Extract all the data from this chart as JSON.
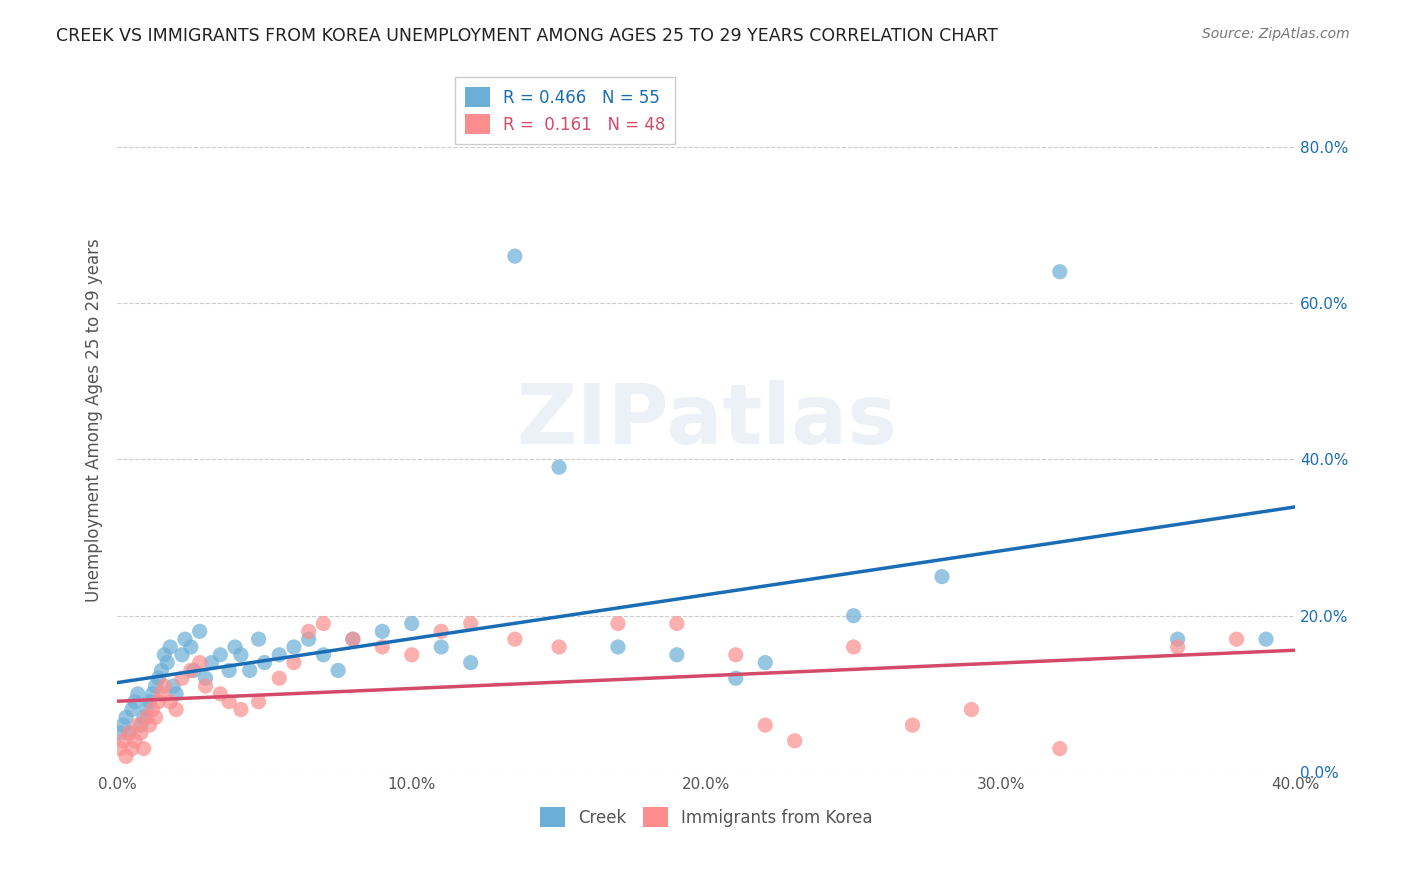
{
  "title": "CREEK VS IMMIGRANTS FROM KOREA UNEMPLOYMENT AMONG AGES 25 TO 29 YEARS CORRELATION CHART",
  "source": "Source: ZipAtlas.com",
  "xlabel": "",
  "ylabel": "Unemployment Among Ages 25 to 29 years",
  "xlim": [
    0,
    0.4
  ],
  "ylim": [
    0,
    0.9
  ],
  "xticks": [
    0.0,
    0.1,
    0.2,
    0.3,
    0.4
  ],
  "yticks": [
    0.0,
    0.2,
    0.4,
    0.6,
    0.8
  ],
  "creek_color": "#6baed6",
  "korea_color": "#fc8d8d",
  "creek_line_color": "#1a6db5",
  "korea_line_color": "#d44a6a",
  "creek_R": 0.466,
  "creek_N": 55,
  "korea_R": 0.161,
  "korea_N": 48,
  "creek_x": [
    0.001,
    0.002,
    0.003,
    0.004,
    0.005,
    0.006,
    0.007,
    0.008,
    0.009,
    0.01,
    0.011,
    0.012,
    0.013,
    0.014,
    0.015,
    0.016,
    0.017,
    0.018,
    0.019,
    0.02,
    0.022,
    0.023,
    0.025,
    0.026,
    0.028,
    0.03,
    0.032,
    0.035,
    0.038,
    0.04,
    0.042,
    0.045,
    0.048,
    0.05,
    0.055,
    0.06,
    0.065,
    0.07,
    0.075,
    0.08,
    0.09,
    0.1,
    0.11,
    0.12,
    0.135,
    0.15,
    0.17,
    0.19,
    0.21,
    0.22,
    0.25,
    0.28,
    0.32,
    0.36,
    0.39
  ],
  "creek_y": [
    0.05,
    0.06,
    0.07,
    0.05,
    0.08,
    0.09,
    0.1,
    0.06,
    0.07,
    0.08,
    0.09,
    0.1,
    0.11,
    0.12,
    0.13,
    0.15,
    0.14,
    0.16,
    0.11,
    0.1,
    0.15,
    0.17,
    0.16,
    0.13,
    0.18,
    0.12,
    0.14,
    0.15,
    0.13,
    0.16,
    0.15,
    0.13,
    0.17,
    0.14,
    0.15,
    0.16,
    0.17,
    0.15,
    0.13,
    0.17,
    0.18,
    0.19,
    0.16,
    0.14,
    0.66,
    0.39,
    0.16,
    0.15,
    0.12,
    0.14,
    0.2,
    0.25,
    0.64,
    0.17,
    0.17
  ],
  "korea_x": [
    0.001,
    0.002,
    0.003,
    0.004,
    0.005,
    0.006,
    0.007,
    0.008,
    0.009,
    0.01,
    0.011,
    0.012,
    0.013,
    0.014,
    0.015,
    0.016,
    0.018,
    0.02,
    0.022,
    0.025,
    0.028,
    0.03,
    0.035,
    0.038,
    0.042,
    0.048,
    0.055,
    0.06,
    0.065,
    0.07,
    0.08,
    0.09,
    0.1,
    0.11,
    0.12,
    0.135,
    0.15,
    0.17,
    0.19,
    0.21,
    0.22,
    0.23,
    0.25,
    0.27,
    0.29,
    0.32,
    0.36,
    0.38
  ],
  "korea_y": [
    0.03,
    0.04,
    0.02,
    0.05,
    0.03,
    0.04,
    0.06,
    0.05,
    0.03,
    0.07,
    0.06,
    0.08,
    0.07,
    0.09,
    0.1,
    0.11,
    0.09,
    0.08,
    0.12,
    0.13,
    0.14,
    0.11,
    0.1,
    0.09,
    0.08,
    0.09,
    0.12,
    0.14,
    0.18,
    0.19,
    0.17,
    0.16,
    0.15,
    0.18,
    0.19,
    0.17,
    0.16,
    0.19,
    0.19,
    0.15,
    0.06,
    0.04,
    0.16,
    0.06,
    0.08,
    0.03,
    0.16,
    0.17
  ],
  "background_color": "#ffffff",
  "watermark_text": "ZIPatlas",
  "legend_creek_label": "Creek",
  "legend_korea_label": "Immigrants from Korea"
}
